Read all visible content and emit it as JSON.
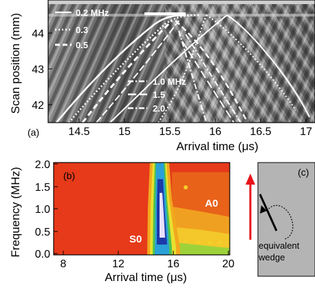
{
  "panel_a": {
    "label": "(a)",
    "ylabel": "Scan position (mm)",
    "xlabel": "Arrival time (μs)",
    "xticks": [
      "14.5",
      "15",
      "15.5",
      "16",
      "16.5",
      "17"
    ],
    "yticks": [
      "44",
      "43",
      "42"
    ],
    "legend": [
      {
        "style": "solid",
        "label": "0.2 MHz"
      },
      {
        "style": "dotted",
        "label": "0.3"
      },
      {
        "style": "dashed",
        "label": "0.5"
      },
      {
        "style": "dashdot",
        "label": "1.0 MHz"
      },
      {
        "style": "longdash",
        "label": "1.5"
      },
      {
        "style": "dashdot",
        "label": "2.0"
      }
    ]
  },
  "panel_b": {
    "label": "(b)",
    "ylabel": "Frequency (MHz)",
    "xlabel": "Arrival time (μs)",
    "xticks": [
      "8",
      "12",
      "16",
      "20"
    ],
    "yticks": [
      "2.0",
      "1.5",
      "1.0",
      "0.5",
      "0.0"
    ],
    "modes": [
      "S0",
      "A0"
    ]
  },
  "panel_c": {
    "label": "(c)",
    "caption_line1": "equivalent",
    "caption_line2": "wedge"
  },
  "colors": {
    "heatmap_background": "#e63a1a",
    "arrow": "#e8141a",
    "panel_c_fill": "#b4b4b4"
  }
}
